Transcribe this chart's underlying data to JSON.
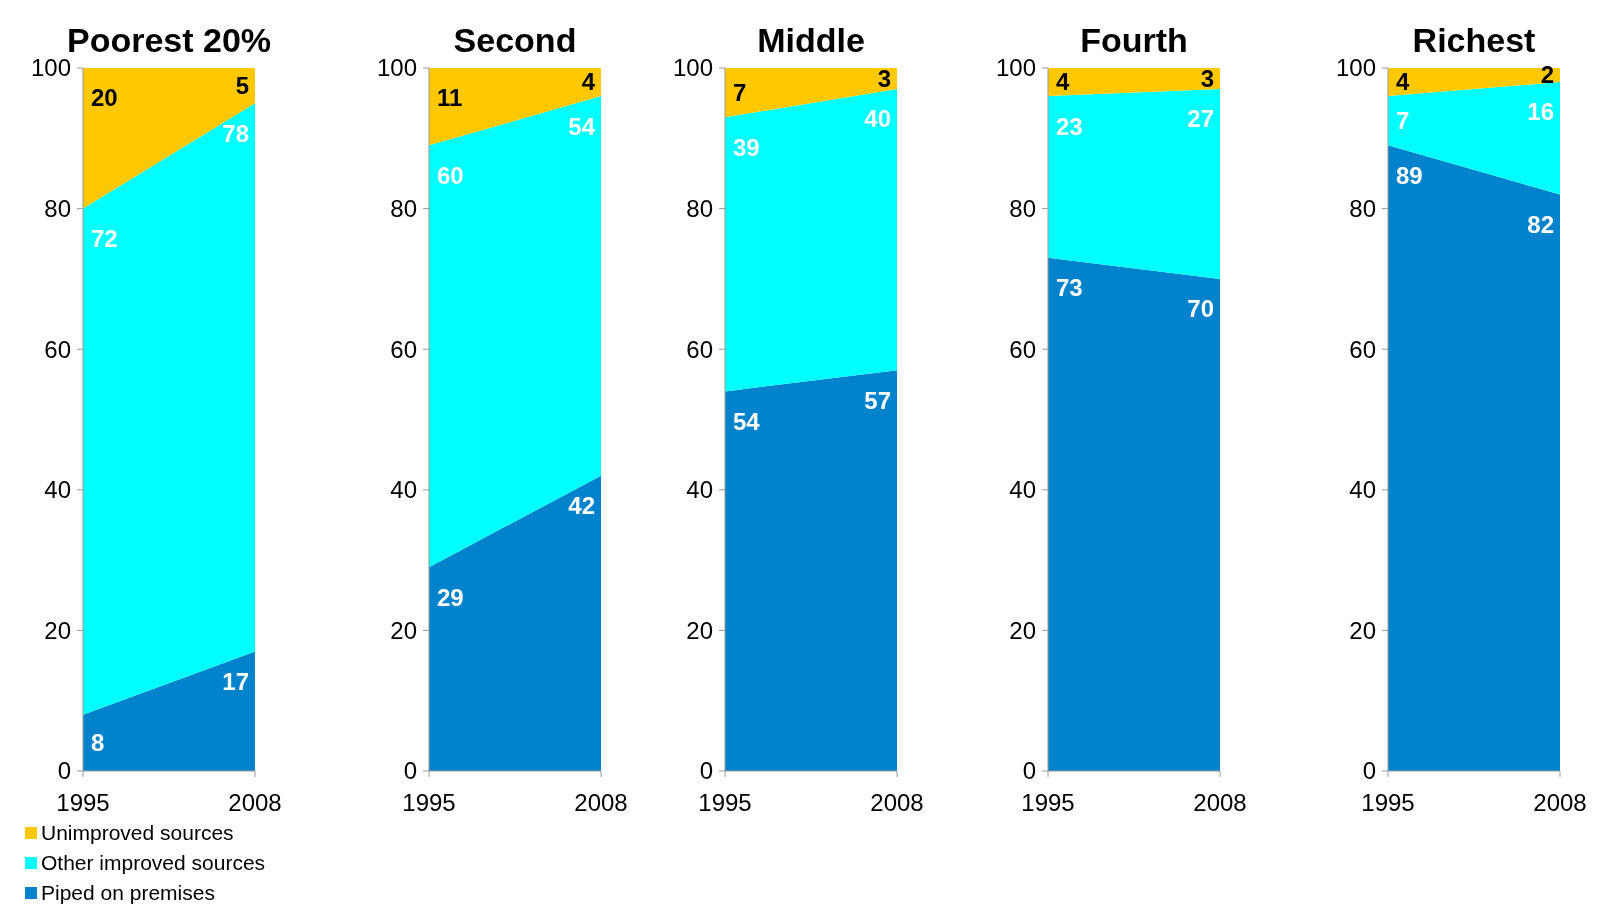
{
  "chart_data": [
    {
      "type": "area",
      "title": "Poorest 20%",
      "stacked": true,
      "x": [
        "1995",
        "2008"
      ],
      "xlim": [
        "1995",
        "2008"
      ],
      "xticks": [
        "1995",
        "2008"
      ],
      "ylim": [
        0,
        100
      ],
      "yticks": [
        0,
        20,
        40,
        60,
        80,
        100
      ],
      "data_labels": true,
      "legend": "bottom left",
      "series": [
        {
          "name": "Piped on premises",
          "color": "#0083cc",
          "values": [
            8,
            17
          ]
        },
        {
          "name": "Other improved sources",
          "color": "#00ffff",
          "values": [
            72,
            78
          ]
        },
        {
          "name": "Unimproved sources",
          "color": "#ffc800",
          "values": [
            20,
            5
          ]
        }
      ]
    },
    {
      "type": "area",
      "title": "Second",
      "stacked": true,
      "x": [
        "1995",
        "2008"
      ],
      "xlim": [
        "1995",
        "2008"
      ],
      "xticks": [
        "1995",
        "2008"
      ],
      "ylim": [
        0,
        100
      ],
      "yticks": [
        0,
        20,
        40,
        60,
        80,
        100
      ],
      "data_labels": true,
      "series": [
        {
          "color": "#0083cc",
          "values": [
            29,
            42
          ]
        },
        {
          "color": "#00ffff",
          "values": [
            60,
            54
          ]
        },
        {
          "color": "#ffc800",
          "values": [
            11,
            4
          ]
        }
      ]
    },
    {
      "type": "area",
      "title": "Middle",
      "stacked": true,
      "x": [
        "1995",
        "2008"
      ],
      "xlim": [
        "1995",
        "2008"
      ],
      "xticks": [
        "1995",
        "2008"
      ],
      "ylim": [
        0,
        100
      ],
      "yticks": [
        0,
        20,
        40,
        60,
        80,
        100
      ],
      "data_labels": true,
      "series": [
        {
          "color": "#0083cc",
          "values": [
            54,
            57
          ]
        },
        {
          "color": "#00ffff",
          "values": [
            39,
            40
          ]
        },
        {
          "color": "#ffc800",
          "values": [
            7,
            3
          ]
        }
      ]
    },
    {
      "type": "area",
      "title": "Fourth",
      "stacked": true,
      "x": [
        "1995",
        "2008"
      ],
      "xlim": [
        "1995",
        "2008"
      ],
      "xticks": [
        "1995",
        "2008"
      ],
      "ylim": [
        0,
        100
      ],
      "yticks": [
        0,
        20,
        40,
        60,
        80,
        100
      ],
      "data_labels": true,
      "series": [
        {
          "color": "#0083cc",
          "values": [
            73,
            70
          ]
        },
        {
          "color": "#00ffff",
          "values": [
            23,
            27
          ]
        },
        {
          "color": "#ffc800",
          "values": [
            4,
            3
          ]
        }
      ]
    },
    {
      "type": "area",
      "title": "Richest",
      "stacked": true,
      "x": [
        "1995",
        "2008"
      ],
      "xlim": [
        "1995",
        "2008"
      ],
      "xticks": [
        "1995",
        "2008"
      ],
      "ylim": [
        0,
        100
      ],
      "yticks": [
        0,
        20,
        40,
        60,
        80,
        100
      ],
      "data_labels": true,
      "series": [
        {
          "color": "#0083cc",
          "values": [
            89,
            82
          ]
        },
        {
          "color": "#00ffff",
          "values": [
            7,
            16
          ]
        },
        {
          "color": "#ffc800",
          "values": [
            4,
            2
          ]
        }
      ]
    }
  ]
}
